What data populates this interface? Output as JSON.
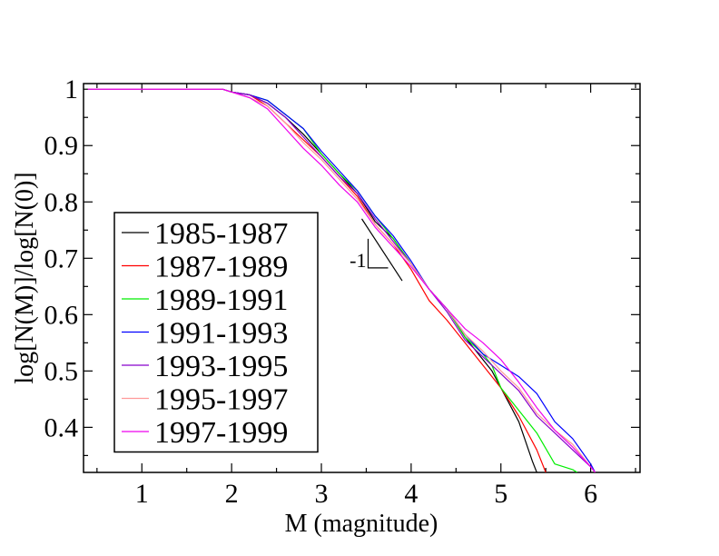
{
  "chart_data": {
    "type": "line",
    "title": "",
    "xlabel": "M (magnitude)",
    "ylabel": "log[N(M)]/log[N(0)]",
    "xlim": [
      0.35,
      6.55
    ],
    "ylim": [
      0.32,
      1.01
    ],
    "xticks": [
      1,
      2,
      3,
      4,
      5,
      6
    ],
    "xtick_labels": [
      "1",
      "2",
      "3",
      "4",
      "5",
      "6"
    ],
    "yticks": [
      0.4,
      0.5,
      0.6,
      0.7,
      0.8,
      0.9,
      1.0
    ],
    "ytick_labels": [
      "0.4",
      "0.5",
      "0.6",
      "0.7",
      "0.8",
      "0.9",
      "1"
    ],
    "grid": false,
    "legend_position": "lower-left",
    "series": [
      {
        "name": "1985-1987",
        "color": "#000000",
        "points": [
          [
            0.4,
            1.0
          ],
          [
            1.9,
            1.0
          ],
          [
            2.0,
            0.995
          ],
          [
            2.2,
            0.99
          ],
          [
            2.4,
            0.975
          ],
          [
            2.6,
            0.95
          ],
          [
            2.8,
            0.92
          ],
          [
            3.0,
            0.885
          ],
          [
            3.2,
            0.85
          ],
          [
            3.4,
            0.815
          ],
          [
            3.6,
            0.765
          ],
          [
            3.8,
            0.735
          ],
          [
            4.0,
            0.69
          ],
          [
            4.2,
            0.645
          ],
          [
            4.4,
            0.61
          ],
          [
            4.6,
            0.56
          ],
          [
            4.8,
            0.52
          ],
          [
            4.9,
            0.5
          ],
          [
            5.0,
            0.47
          ],
          [
            5.2,
            0.41
          ],
          [
            5.35,
            0.34
          ],
          [
            5.4,
            0.32
          ]
        ]
      },
      {
        "name": "1987-1989",
        "color": "#ff0000",
        "points": [
          [
            0.4,
            1.0
          ],
          [
            1.9,
            1.0
          ],
          [
            2.0,
            0.995
          ],
          [
            2.2,
            0.99
          ],
          [
            2.4,
            0.97
          ],
          [
            2.6,
            0.94
          ],
          [
            2.8,
            0.91
          ],
          [
            3.0,
            0.88
          ],
          [
            3.2,
            0.845
          ],
          [
            3.4,
            0.81
          ],
          [
            3.6,
            0.76
          ],
          [
            3.8,
            0.725
          ],
          [
            4.0,
            0.68
          ],
          [
            4.2,
            0.625
          ],
          [
            4.4,
            0.59
          ],
          [
            4.6,
            0.55
          ],
          [
            4.8,
            0.51
          ],
          [
            5.0,
            0.47
          ],
          [
            5.2,
            0.42
          ],
          [
            5.4,
            0.36
          ],
          [
            5.5,
            0.32
          ]
        ]
      },
      {
        "name": "1989-1991",
        "color": "#00ee00",
        "points": [
          [
            0.4,
            1.0
          ],
          [
            1.9,
            1.0
          ],
          [
            2.0,
            0.995
          ],
          [
            2.2,
            0.99
          ],
          [
            2.4,
            0.98
          ],
          [
            2.6,
            0.955
          ],
          [
            2.8,
            0.93
          ],
          [
            3.0,
            0.885
          ],
          [
            3.2,
            0.85
          ],
          [
            3.4,
            0.82
          ],
          [
            3.6,
            0.775
          ],
          [
            3.8,
            0.735
          ],
          [
            4.0,
            0.69
          ],
          [
            4.2,
            0.645
          ],
          [
            4.4,
            0.61
          ],
          [
            4.6,
            0.56
          ],
          [
            4.8,
            0.53
          ],
          [
            4.9,
            0.51
          ],
          [
            5.0,
            0.47
          ],
          [
            5.2,
            0.43
          ],
          [
            5.4,
            0.39
          ],
          [
            5.6,
            0.335
          ],
          [
            5.8,
            0.325
          ],
          [
            5.85,
            0.32
          ]
        ]
      },
      {
        "name": "1991-1993",
        "color": "#0000ff",
        "points": [
          [
            0.4,
            1.0
          ],
          [
            1.9,
            1.0
          ],
          [
            2.0,
            0.995
          ],
          [
            2.2,
            0.99
          ],
          [
            2.4,
            0.98
          ],
          [
            2.6,
            0.955
          ],
          [
            2.8,
            0.93
          ],
          [
            3.0,
            0.89
          ],
          [
            3.2,
            0.855
          ],
          [
            3.4,
            0.82
          ],
          [
            3.6,
            0.775
          ],
          [
            3.8,
            0.74
          ],
          [
            4.0,
            0.695
          ],
          [
            4.2,
            0.645
          ],
          [
            4.4,
            0.61
          ],
          [
            4.6,
            0.565
          ],
          [
            4.8,
            0.53
          ],
          [
            5.0,
            0.51
          ],
          [
            5.2,
            0.49
          ],
          [
            5.4,
            0.46
          ],
          [
            5.6,
            0.41
          ],
          [
            5.8,
            0.38
          ],
          [
            6.0,
            0.335
          ],
          [
            6.05,
            0.32
          ]
        ]
      },
      {
        "name": "1993-1995",
        "color": "#8800cc",
        "points": [
          [
            0.4,
            1.0
          ],
          [
            1.9,
            1.0
          ],
          [
            2.0,
            0.995
          ],
          [
            2.2,
            0.99
          ],
          [
            2.4,
            0.975
          ],
          [
            2.6,
            0.95
          ],
          [
            2.8,
            0.915
          ],
          [
            3.0,
            0.88
          ],
          [
            3.2,
            0.845
          ],
          [
            3.4,
            0.815
          ],
          [
            3.6,
            0.77
          ],
          [
            3.8,
            0.73
          ],
          [
            4.0,
            0.69
          ],
          [
            4.2,
            0.645
          ],
          [
            4.4,
            0.605
          ],
          [
            4.6,
            0.555
          ],
          [
            4.8,
            0.525
          ],
          [
            5.0,
            0.495
          ],
          [
            5.2,
            0.465
          ],
          [
            5.4,
            0.42
          ],
          [
            5.6,
            0.39
          ],
          [
            5.8,
            0.36
          ],
          [
            6.0,
            0.33
          ],
          [
            6.05,
            0.32
          ]
        ]
      },
      {
        "name": "1995-1997",
        "color": "#ff9999",
        "points": [
          [
            0.4,
            1.0
          ],
          [
            1.9,
            1.0
          ],
          [
            2.0,
            0.995
          ],
          [
            2.2,
            0.985
          ],
          [
            2.4,
            0.97
          ],
          [
            2.6,
            0.94
          ],
          [
            2.8,
            0.905
          ],
          [
            3.0,
            0.875
          ],
          [
            3.2,
            0.84
          ],
          [
            3.4,
            0.805
          ],
          [
            3.6,
            0.76
          ],
          [
            3.8,
            0.725
          ],
          [
            4.0,
            0.69
          ],
          [
            4.2,
            0.645
          ],
          [
            4.4,
            0.61
          ],
          [
            4.6,
            0.565
          ],
          [
            4.8,
            0.535
          ],
          [
            5.0,
            0.5
          ],
          [
            5.2,
            0.47
          ],
          [
            5.4,
            0.425
          ],
          [
            5.6,
            0.395
          ],
          [
            5.8,
            0.37
          ],
          [
            6.0,
            0.33
          ],
          [
            6.05,
            0.32
          ]
        ]
      },
      {
        "name": "1997-1999",
        "color": "#ee00ee",
        "points": [
          [
            0.4,
            1.0
          ],
          [
            1.9,
            1.0
          ],
          [
            2.0,
            0.995
          ],
          [
            2.2,
            0.985
          ],
          [
            2.4,
            0.965
          ],
          [
            2.6,
            0.93
          ],
          [
            2.8,
            0.895
          ],
          [
            3.0,
            0.865
          ],
          [
            3.2,
            0.83
          ],
          [
            3.4,
            0.8
          ],
          [
            3.6,
            0.755
          ],
          [
            3.8,
            0.72
          ],
          [
            4.0,
            0.685
          ],
          [
            4.2,
            0.645
          ],
          [
            4.4,
            0.61
          ],
          [
            4.6,
            0.575
          ],
          [
            4.8,
            0.55
          ],
          [
            5.0,
            0.52
          ],
          [
            5.2,
            0.48
          ],
          [
            5.4,
            0.435
          ],
          [
            5.6,
            0.395
          ],
          [
            5.8,
            0.365
          ],
          [
            6.0,
            0.33
          ],
          [
            6.05,
            0.32
          ]
        ]
      }
    ],
    "reference_line": {
      "label": "-1",
      "slope": -1,
      "x": [
        3.45,
        3.9
      ],
      "y": [
        0.77,
        0.66
      ]
    }
  }
}
